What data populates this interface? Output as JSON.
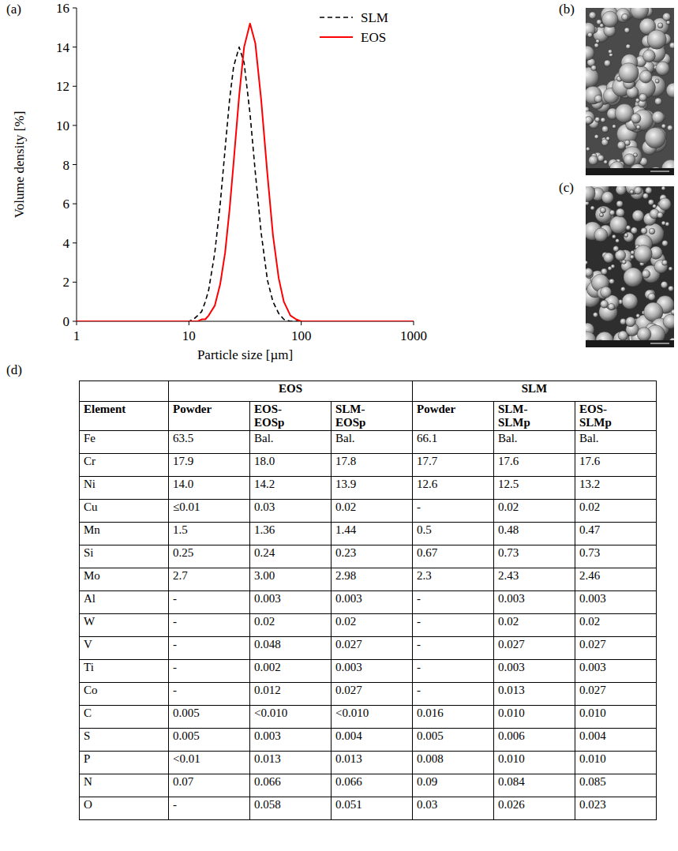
{
  "panels": [
    "(a)",
    "(b)",
    "(c)",
    "(d)"
  ],
  "chart_data": {
    "type": "line",
    "x_label": "Particle size [µm]",
    "y_label": "Volume density  [%]",
    "log": "x",
    "xlim": [
      1,
      1000
    ],
    "xticks": [
      1,
      10,
      100,
      1000
    ],
    "ylim": [
      0,
      16
    ],
    "yticks": [
      0,
      2,
      4,
      6,
      8,
      10,
      12,
      14,
      16
    ],
    "grid": false,
    "legend": "top-right",
    "x": [
      1,
      10,
      11,
      12,
      13,
      14,
      15,
      17,
      19,
      21,
      23,
      25,
      28,
      31,
      35,
      39,
      44,
      50,
      56,
      63,
      70,
      80,
      90,
      100,
      1000
    ],
    "series": [
      {
        "name": "SLM",
        "color": "#000000",
        "line_style": "dashed",
        "values": [
          0,
          0,
          0.1,
          0.3,
          0.5,
          1.0,
          1.6,
          3.5,
          6.0,
          8.8,
          11.3,
          13.0,
          14.0,
          13.2,
          10.6,
          7.6,
          4.5,
          2.1,
          1.0,
          0.4,
          0.1,
          0,
          0,
          0,
          0
        ]
      },
      {
        "name": "EOS",
        "color": "#ff0000",
        "line_style": "solid",
        "values": [
          0,
          0,
          0,
          0,
          0.1,
          0.1,
          0.3,
          0.8,
          1.9,
          3.5,
          5.7,
          8.1,
          11.5,
          14.0,
          15.2,
          14.2,
          11.3,
          7.5,
          4.4,
          2.2,
          1.0,
          0.3,
          0.1,
          0,
          0
        ]
      }
    ]
  },
  "table": {
    "header": {
      "element": "Element",
      "groups": [
        "EOS",
        "SLM"
      ],
      "columns": [
        "Powder",
        "EOS-EOSp",
        "SLM-EOSp",
        "Powder",
        "SLM-SLMp",
        "EOS-SLMp"
      ]
    },
    "rows": [
      [
        "Fe",
        "63.5",
        "Bal.",
        "Bal.",
        "66.1",
        "Bal.",
        "Bal."
      ],
      [
        "Cr",
        "17.9",
        "18.0",
        "17.8",
        "17.7",
        "17.6",
        "17.6"
      ],
      [
        "Ni",
        "14.0",
        "14.2",
        "13.9",
        "12.6",
        "12.5",
        "13.2"
      ],
      [
        "Cu",
        "≤0.01",
        "0.03",
        "0.02",
        "-",
        "0.02",
        "0.02"
      ],
      [
        "Mn",
        "1.5",
        "1.36",
        "1.44",
        "0.5",
        "0.48",
        "0.47"
      ],
      [
        "Si",
        "0.25",
        "0.24",
        "0.23",
        "0.67",
        "0.73",
        "0.73"
      ],
      [
        "Mo",
        "2.7",
        "3.00",
        "2.98",
        "2.3",
        "2.43",
        "2.46"
      ],
      [
        "Al",
        "-",
        "0.003",
        "0.003",
        "-",
        "0.003",
        "0.003"
      ],
      [
        "W",
        "-",
        "0.02",
        "0.02",
        "-",
        "0.02",
        "0.02"
      ],
      [
        "V",
        "-",
        "0.048",
        "0.027",
        "-",
        "0.027",
        "0.027"
      ],
      [
        "Ti",
        "-",
        "0.002",
        "0.003",
        "-",
        "0.003",
        "0.003"
      ],
      [
        "Co",
        "-",
        "0.012",
        "0.027",
        "-",
        "0.013",
        "0.027"
      ],
      [
        "C",
        "0.005",
        "<0.010",
        "<0.010",
        "0.016",
        "0.010",
        "0.010"
      ],
      [
        "S",
        "0.005",
        "0.003",
        "0.004",
        "0.005",
        "0.006",
        "0.004"
      ],
      [
        "P",
        "<0.01",
        "0.013",
        "0.013",
        "0.008",
        "0.010",
        "0.010"
      ],
      [
        "N",
        "0.07",
        "0.066",
        "0.066",
        "0.09",
        "0.084",
        "0.085"
      ],
      [
        "O",
        "-",
        "0.058",
        "0.051",
        "0.03",
        "0.026",
        "0.023"
      ]
    ]
  }
}
